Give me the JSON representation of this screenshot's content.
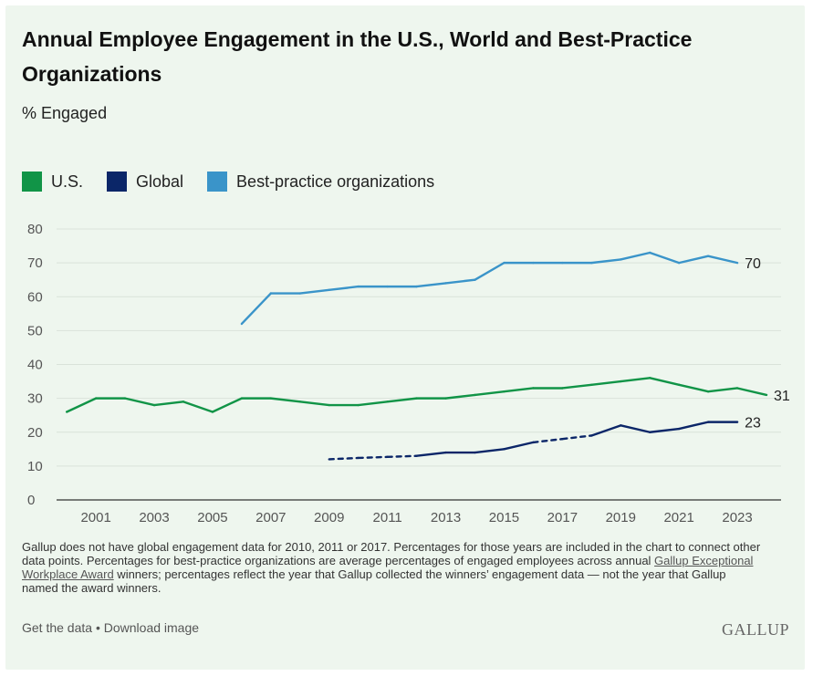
{
  "title": "Annual Employee Engagement in the U.S., World and Best-Practice Organizations",
  "subtitle": "% Engaged",
  "legend": [
    {
      "label": "U.S.",
      "color": "#119447"
    },
    {
      "label": "Global",
      "color": "#0b2668"
    },
    {
      "label": "Best-practice organizations",
      "color": "#3a94c9"
    }
  ],
  "footnote": {
    "before_link": "Gallup does not have global engagement data for 2010, 2011 or 2017. Percentages for those years are included in the chart to connect other data points. Percentages for best-practice organizations are average percentages of engaged employees across annual ",
    "link": "Gallup Exceptional Workplace Award",
    "after_link": " winners; percentages reflect the year that Gallup collected the winners’ engagement data — not the year that Gallup named the award winners."
  },
  "footer": {
    "get_data": "Get the data",
    "separator": "•",
    "download": "Download image",
    "brand": "GALLUP"
  },
  "chart_data": {
    "type": "line",
    "ylim": [
      0,
      80
    ],
    "yticks": [
      0,
      10,
      20,
      30,
      40,
      50,
      60,
      70,
      80
    ],
    "xlim": [
      2000,
      2024
    ],
    "xticks": [
      2001,
      2003,
      2005,
      2007,
      2009,
      2011,
      2013,
      2015,
      2017,
      2019,
      2021,
      2023
    ],
    "grid": true,
    "legend_position": "top-left",
    "series": [
      {
        "name": "U.S.",
        "color": "#119447",
        "end_label": "31",
        "points": [
          [
            2000,
            26
          ],
          [
            2001,
            30
          ],
          [
            2002,
            30
          ],
          [
            2003,
            28
          ],
          [
            2004,
            29
          ],
          [
            2005,
            26
          ],
          [
            2006,
            30
          ],
          [
            2007,
            30
          ],
          [
            2008,
            29
          ],
          [
            2009,
            28
          ],
          [
            2010,
            28
          ],
          [
            2011,
            29
          ],
          [
            2012,
            30
          ],
          [
            2013,
            30
          ],
          [
            2014,
            31
          ],
          [
            2015,
            32
          ],
          [
            2016,
            33
          ],
          [
            2017,
            33
          ],
          [
            2018,
            34
          ],
          [
            2019,
            35
          ],
          [
            2020,
            36
          ],
          [
            2021,
            34
          ],
          [
            2022,
            32
          ],
          [
            2023,
            33
          ],
          [
            2024,
            31
          ]
        ],
        "dashed_years": []
      },
      {
        "name": "Global",
        "color": "#0b2668",
        "end_label": "23",
        "points": [
          [
            2009,
            12
          ],
          [
            2010,
            12.4
          ],
          [
            2011,
            12.7
          ],
          [
            2012,
            13
          ],
          [
            2013,
            14
          ],
          [
            2014,
            14
          ],
          [
            2015,
            15
          ],
          [
            2016,
            17
          ],
          [
            2017,
            18
          ],
          [
            2018,
            19
          ],
          [
            2019,
            22
          ],
          [
            2020,
            20
          ],
          [
            2021,
            21
          ],
          [
            2022,
            23
          ],
          [
            2023,
            23
          ]
        ],
        "dashed_years": [
          2010,
          2011,
          2017
        ]
      },
      {
        "name": "Best-practice organizations",
        "color": "#3a94c9",
        "end_label": "70",
        "points": [
          [
            2006,
            52
          ],
          [
            2007,
            61
          ],
          [
            2008,
            61
          ],
          [
            2009,
            62
          ],
          [
            2010,
            63
          ],
          [
            2011,
            63
          ],
          [
            2012,
            63
          ],
          [
            2013,
            64
          ],
          [
            2014,
            65
          ],
          [
            2015,
            70
          ],
          [
            2016,
            70
          ],
          [
            2017,
            70
          ],
          [
            2018,
            70
          ],
          [
            2019,
            71
          ],
          [
            2020,
            73
          ],
          [
            2021,
            70
          ],
          [
            2022,
            72
          ],
          [
            2023,
            70
          ]
        ],
        "dashed_years": []
      }
    ]
  }
}
